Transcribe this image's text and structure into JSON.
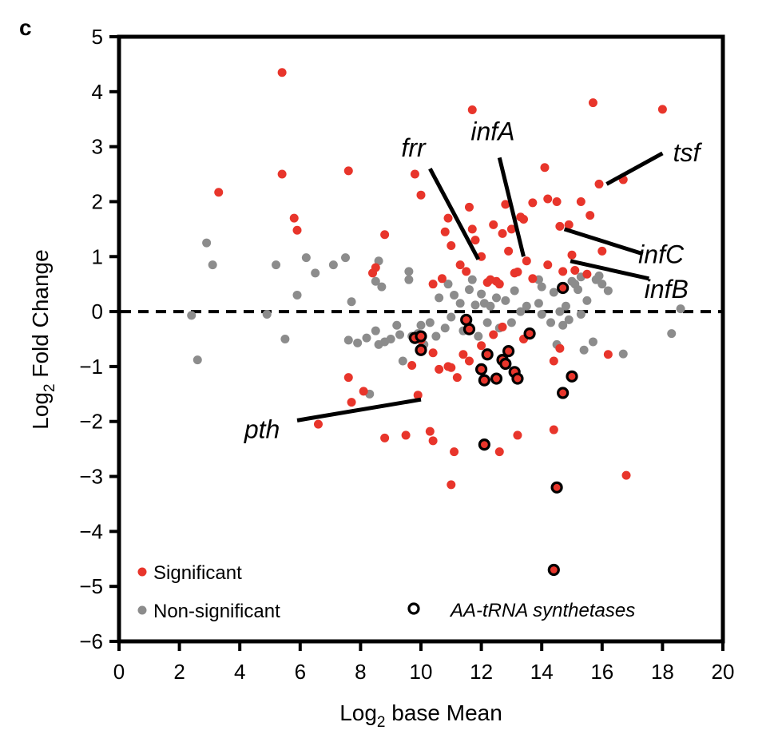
{
  "panel_label": "c",
  "colors": {
    "significant": "#e8352b",
    "non_significant": "#8c8c8c",
    "axis": "#000000",
    "outline": "#000000"
  },
  "chart_data": {
    "type": "scatter",
    "title": "",
    "xlabel": "Log",
    "xlabel_sub": "2",
    "xlabel_rest": " base Mean",
    "ylabel": "Log",
    "ylabel_sub": "2",
    "ylabel_rest": " Fold Change",
    "xlim": [
      0,
      20
    ],
    "ylim": [
      -6,
      5
    ],
    "xticks": [
      0,
      2,
      4,
      6,
      8,
      10,
      12,
      14,
      16,
      18,
      20
    ],
    "yticks": [
      5,
      4,
      3,
      2,
      1,
      0,
      -1,
      -2,
      -3,
      -4,
      -5,
      -6
    ],
    "xtick_labels": [
      "0",
      "2",
      "4",
      "6",
      "8",
      "10",
      "12",
      "14",
      "16",
      "18",
      "20"
    ],
    "ytick_labels": [
      "5",
      "4",
      "3",
      "2",
      "1",
      "0",
      "−1",
      "−2",
      "−3",
      "−4",
      "−5",
      "−6"
    ],
    "reference_line": {
      "y": 0,
      "style": "dashed"
    },
    "legend": [
      {
        "label": "Significant",
        "marker": "red-dot"
      },
      {
        "label": "Non-significant",
        "marker": "grey-dot"
      },
      {
        "label": "AA-tRNA synthetases",
        "marker": "black-ring"
      }
    ],
    "significant": [
      [
        5.4,
        4.35
      ],
      [
        5.4,
        2.5
      ],
      [
        3.3,
        2.17
      ],
      [
        5.8,
        1.7
      ],
      [
        5.9,
        1.48
      ],
      [
        7.6,
        2.56
      ],
      [
        8.8,
        1.4
      ],
      [
        8.5,
        0.8
      ],
      [
        8.4,
        0.7
      ],
      [
        9.8,
        2.5
      ],
      [
        10.0,
        2.12
      ],
      [
        10.4,
        0.5
      ],
      [
        10.7,
        0.6
      ],
      [
        10.9,
        1.7
      ],
      [
        10.8,
        1.45
      ],
      [
        11.0,
        1.2
      ],
      [
        11.3,
        0.85
      ],
      [
        11.6,
        1.9
      ],
      [
        11.7,
        1.5
      ],
      [
        11.5,
        0.73
      ],
      [
        11.8,
        1.3
      ],
      [
        12.0,
        1.0
      ],
      [
        12.2,
        0.53
      ],
      [
        12.3,
        0.58
      ],
      [
        12.4,
        1.58
      ],
      [
        12.5,
        0.55
      ],
      [
        12.6,
        0.5
      ],
      [
        12.7,
        1.42
      ],
      [
        12.8,
        1.95
      ],
      [
        12.9,
        1.1
      ],
      [
        13.0,
        1.5
      ],
      [
        13.1,
        0.7
      ],
      [
        13.2,
        0.72
      ],
      [
        13.3,
        1.72
      ],
      [
        13.4,
        1.68
      ],
      [
        13.5,
        0.92
      ],
      [
        13.7,
        0.6
      ],
      [
        13.7,
        1.98
      ],
      [
        14.1,
        2.62
      ],
      [
        14.2,
        2.05
      ],
      [
        14.2,
        0.85
      ],
      [
        14.5,
        2.0
      ],
      [
        14.6,
        1.55
      ],
      [
        14.9,
        1.58
      ],
      [
        15.0,
        1.03
      ],
      [
        15.1,
        0.75
      ],
      [
        15.3,
        2.0
      ],
      [
        15.6,
        1.75
      ],
      [
        15.9,
        2.32
      ],
      [
        16.0,
        1.1
      ],
      [
        16.7,
        2.4
      ],
      [
        15.7,
        3.8
      ],
      [
        18.0,
        3.68
      ],
      [
        11.7,
        3.67
      ],
      [
        9.7,
        -0.98
      ],
      [
        10.0,
        -0.52
      ],
      [
        10.4,
        -0.75
      ],
      [
        10.6,
        -1.05
      ],
      [
        10.9,
        -1.0
      ],
      [
        11.0,
        -1.02
      ],
      [
        11.2,
        -1.2
      ],
      [
        11.4,
        -0.78
      ],
      [
        11.6,
        -0.9
      ],
      [
        12.0,
        -0.62
      ],
      [
        12.4,
        -0.42
      ],
      [
        12.7,
        -0.28
      ],
      [
        13.4,
        -0.5
      ],
      [
        14.4,
        -0.9
      ],
      [
        14.6,
        -0.67
      ],
      [
        16.2,
        -0.78
      ],
      [
        7.6,
        -1.2
      ],
      [
        7.7,
        -1.65
      ],
      [
        8.1,
        -1.45
      ],
      [
        9.9,
        -1.52
      ],
      [
        6.6,
        -2.05
      ],
      [
        8.8,
        -2.3
      ],
      [
        9.5,
        -2.25
      ],
      [
        10.3,
        -2.18
      ],
      [
        10.4,
        -2.35
      ],
      [
        11.1,
        -2.55
      ],
      [
        12.6,
        -2.55
      ],
      [
        13.2,
        -2.25
      ],
      [
        14.4,
        -2.15
      ],
      [
        11.0,
        -3.15
      ],
      [
        16.8,
        -2.98
      ],
      [
        14.7,
        0.73
      ],
      [
        15.5,
        0.68
      ]
    ],
    "non_significant": [
      [
        2.9,
        1.25
      ],
      [
        3.1,
        0.85
      ],
      [
        5.2,
        0.85
      ],
      [
        5.9,
        0.3
      ],
      [
        6.2,
        0.98
      ],
      [
        6.5,
        0.7
      ],
      [
        7.1,
        0.85
      ],
      [
        7.5,
        0.98
      ],
      [
        7.7,
        0.18
      ],
      [
        4.9,
        -0.05
      ],
      [
        2.4,
        -0.07
      ],
      [
        2.6,
        -0.88
      ],
      [
        5.5,
        -0.5
      ],
      [
        7.6,
        -0.52
      ],
      [
        7.9,
        -0.57
      ],
      [
        8.2,
        -0.48
      ],
      [
        8.3,
        -1.5
      ],
      [
        8.5,
        -0.35
      ],
      [
        8.6,
        -0.6
      ],
      [
        8.8,
        -0.55
      ],
      [
        9.0,
        -0.5
      ],
      [
        9.3,
        -0.42
      ],
      [
        9.4,
        -0.9
      ],
      [
        9.7,
        -0.45
      ],
      [
        9.9,
        -0.4
      ],
      [
        10.1,
        -0.6
      ],
      [
        10.3,
        -0.2
      ],
      [
        10.5,
        -0.45
      ],
      [
        10.6,
        0.25
      ],
      [
        10.8,
        -0.3
      ],
      [
        11.0,
        -0.1
      ],
      [
        11.1,
        0.3
      ],
      [
        11.3,
        0.15
      ],
      [
        11.4,
        -0.35
      ],
      [
        11.6,
        0.4
      ],
      [
        11.7,
        0.58
      ],
      [
        11.8,
        0.12
      ],
      [
        12.0,
        0.32
      ],
      [
        12.2,
        -0.2
      ],
      [
        12.3,
        0.1
      ],
      [
        12.5,
        0.25
      ],
      [
        12.6,
        -0.3
      ],
      [
        12.8,
        0.2
      ],
      [
        13.0,
        -0.2
      ],
      [
        13.1,
        0.38
      ],
      [
        13.3,
        0.0
      ],
      [
        13.5,
        0.1
      ],
      [
        13.6,
        -0.38
      ],
      [
        13.9,
        0.15
      ],
      [
        14.0,
        0.45
      ],
      [
        14.3,
        -0.2
      ],
      [
        14.4,
        0.35
      ],
      [
        14.5,
        -0.6
      ],
      [
        14.6,
        0.0
      ],
      [
        14.8,
        0.1
      ],
      [
        14.9,
        -0.15
      ],
      [
        15.0,
        0.55
      ],
      [
        15.2,
        0.4
      ],
      [
        15.3,
        -0.05
      ],
      [
        15.4,
        -0.7
      ],
      [
        15.5,
        0.2
      ],
      [
        15.7,
        -0.55
      ],
      [
        15.8,
        0.58
      ],
      [
        16.0,
        0.5
      ],
      [
        16.2,
        0.38
      ],
      [
        16.7,
        -0.77
      ],
      [
        18.3,
        -0.4
      ],
      [
        18.6,
        0.05
      ],
      [
        8.6,
        0.92
      ],
      [
        8.5,
        0.55
      ],
      [
        8.7,
        0.45
      ],
      [
        9.6,
        0.58
      ],
      [
        9.6,
        0.73
      ],
      [
        10.9,
        0.5
      ],
      [
        13.9,
        0.58
      ],
      [
        15.3,
        0.63
      ],
      [
        15.9,
        0.65
      ],
      [
        14.7,
        -0.25
      ],
      [
        15.1,
        0.5
      ],
      [
        14.0,
        -0.05
      ],
      [
        12.1,
        0.15
      ],
      [
        9.2,
        -0.25
      ],
      [
        10.0,
        -0.25
      ],
      [
        11.9,
        -0.45
      ]
    ],
    "aa_trna_synthetases": [
      [
        9.8,
        -0.48
      ],
      [
        10.0,
        -0.45
      ],
      [
        10.0,
        -0.7
      ],
      [
        11.5,
        -0.15
      ],
      [
        11.6,
        -0.32
      ],
      [
        13.6,
        -0.4
      ],
      [
        14.7,
        0.43
      ],
      [
        12.0,
        -1.05
      ],
      [
        12.1,
        -1.25
      ],
      [
        12.2,
        -0.78
      ],
      [
        12.5,
        -1.22
      ],
      [
        12.7,
        -0.88
      ],
      [
        12.8,
        -0.95
      ],
      [
        12.9,
        -0.72
      ],
      [
        13.1,
        -1.1
      ],
      [
        13.2,
        -1.22
      ],
      [
        14.7,
        -1.48
      ],
      [
        15.0,
        -1.18
      ],
      [
        12.1,
        -2.42
      ],
      [
        14.5,
        -3.2
      ],
      [
        14.4,
        -4.7
      ]
    ],
    "annotations": [
      {
        "label": "frr",
        "label_anchor": [
          9.35,
          2.82
        ],
        "line": [
          [
            10.3,
            2.6
          ],
          [
            11.9,
            0.95
          ]
        ]
      },
      {
        "label": "infA",
        "label_anchor": [
          11.65,
          3.12
        ],
        "line": [
          [
            12.6,
            2.8
          ],
          [
            13.4,
            1.0
          ]
        ]
      },
      {
        "label": "tsf",
        "label_anchor": [
          18.35,
          2.73
        ],
        "line": [
          [
            18.0,
            2.88
          ],
          [
            16.15,
            2.32
          ]
        ]
      },
      {
        "label": "infC",
        "label_anchor": [
          17.2,
          0.88
        ],
        "line": [
          [
            17.35,
            1.05
          ],
          [
            14.75,
            1.5
          ]
        ]
      },
      {
        "label": "infB",
        "label_anchor": [
          17.4,
          0.25
        ],
        "line": [
          [
            17.55,
            0.6
          ],
          [
            14.95,
            0.92
          ]
        ]
      },
      {
        "label": "pth",
        "label_anchor": [
          4.15,
          -2.3
        ],
        "line": [
          [
            5.9,
            -1.98
          ],
          [
            10.0,
            -1.6
          ]
        ]
      }
    ]
  }
}
